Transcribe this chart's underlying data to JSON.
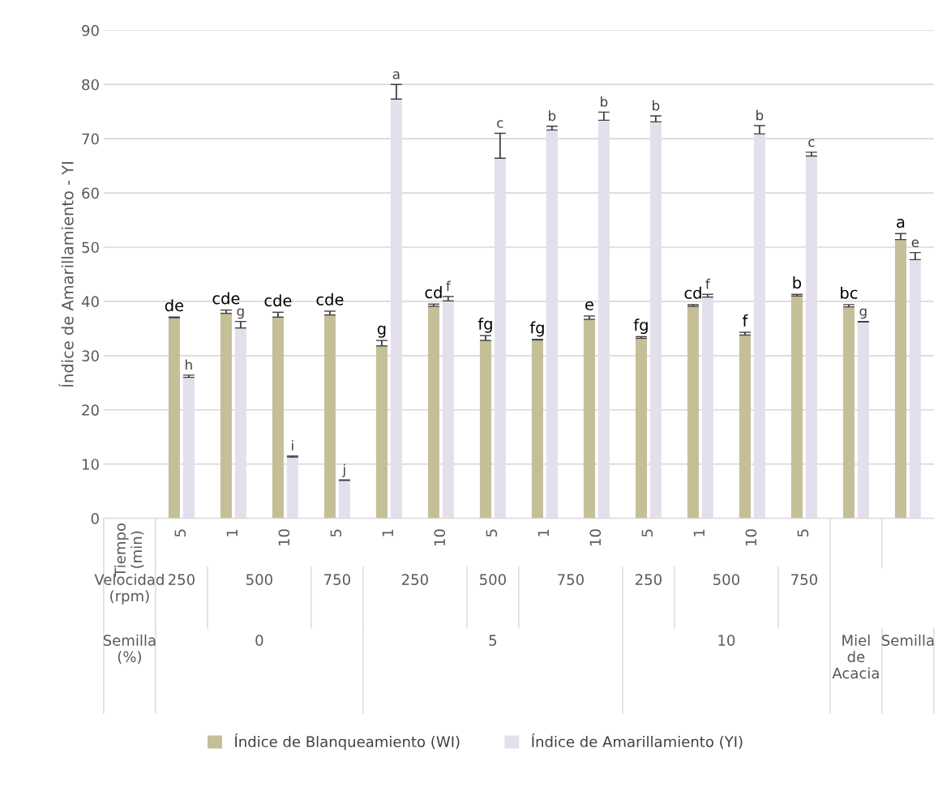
{
  "chart_data": {
    "type": "bar",
    "ylabel": "Índice de Amarillamiento - YI",
    "categories": [
      null,
      "5",
      "1",
      "10",
      "5",
      "1",
      "10",
      "5",
      "1",
      "10",
      "5",
      "1",
      "10",
      "5",
      null,
      null
    ],
    "annotations": [
      "Tiempo\n(min)",
      "Velocidad\n(rpm)",
      "250",
      "500",
      "750",
      "250",
      "500",
      "750",
      "250",
      "500",
      "750",
      "Semilla\n(%)",
      "0",
      "5",
      "10",
      "Miel\nde\nAcacia",
      "Semilla"
    ],
    "series": [
      {
        "name": "Índice de Blanqueamiento (WI)",
        "color": "#c5bf98",
        "values": [
          null,
          37.0,
          37.8,
          37.1,
          37.5,
          31.8,
          39.1,
          32.8,
          32.9,
          36.7,
          33.2,
          39.1,
          33.8,
          41.0,
          39.0,
          51.4
        ],
        "errors": [
          null,
          [
            37.0,
            37.1
          ],
          [
            37.8,
            38.4
          ],
          [
            37.1,
            38.0
          ],
          [
            37.5,
            38.2
          ],
          [
            31.8,
            32.8
          ],
          [
            39.1,
            39.5
          ],
          [
            32.8,
            33.7
          ],
          [
            32.9,
            33.0
          ],
          [
            36.7,
            37.3
          ],
          [
            33.2,
            33.5
          ],
          [
            39.1,
            39.4
          ],
          [
            33.8,
            34.3
          ],
          [
            41.0,
            41.3
          ],
          [
            39.0,
            39.4
          ],
          [
            51.4,
            52.5
          ]
        ],
        "value_labels": [
          null,
          "de",
          "cde",
          "cde",
          "cde",
          "g",
          "cd",
          "fg",
          "fg",
          "e",
          "fg",
          "cd",
          "f",
          "b",
          "bc",
          "a"
        ]
      },
      {
        "name": "Índice de Amarillamiento (YI)",
        "color": "#e4dfec",
        "values": [
          null,
          26.0,
          35.1,
          11.3,
          7.0,
          77.3,
          40.1,
          66.4,
          71.6,
          73.4,
          73.1,
          40.8,
          70.9,
          66.8,
          36.2,
          47.7
        ],
        "errors": [
          null,
          [
            26.0,
            26.4
          ],
          [
            35.1,
            36.3
          ],
          [
            11.3,
            11.5
          ],
          [
            7.0,
            7.1
          ],
          [
            77.3,
            80.0
          ],
          [
            40.1,
            40.9
          ],
          [
            66.4,
            71.0
          ],
          [
            71.6,
            72.3
          ],
          [
            73.4,
            74.9
          ],
          [
            73.1,
            74.2
          ],
          [
            40.8,
            41.3
          ],
          [
            70.9,
            72.4
          ],
          [
            66.8,
            67.5
          ],
          [
            36.2,
            36.3
          ],
          [
            47.7,
            49.0
          ]
        ],
        "value_labels": [
          null,
          "h",
          "g",
          "i",
          "j",
          "a",
          "f",
          "c",
          "b",
          "b",
          "b",
          "f",
          "b",
          "c",
          "g",
          "e"
        ]
      }
    ],
    "ylim": [
      0,
      90
    ],
    "yticks": [
      0,
      10,
      20,
      30,
      40,
      50,
      60,
      70,
      80,
      90
    ],
    "grid": "y",
    "legend": "bottom"
  }
}
